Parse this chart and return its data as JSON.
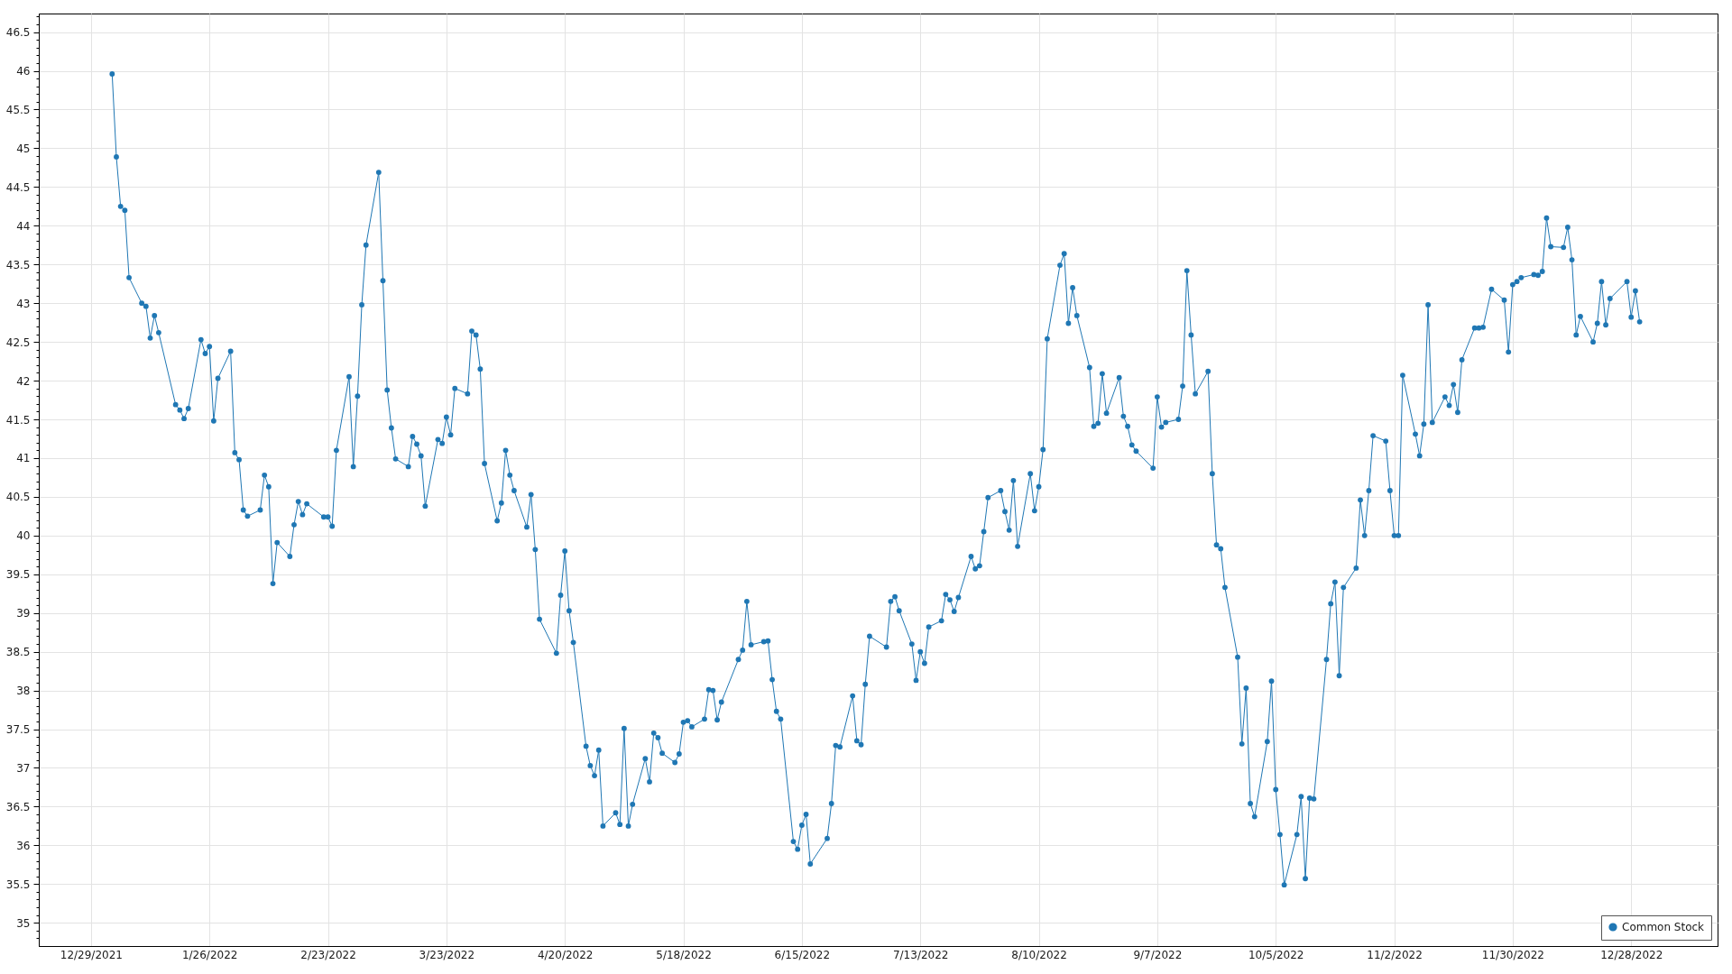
{
  "chart_data": {
    "type": "line",
    "x": [
      "2022-01-03",
      "2022-01-04",
      "2022-01-05",
      "2022-01-06",
      "2022-01-07",
      "2022-01-10",
      "2022-01-11",
      "2022-01-12",
      "2022-01-13",
      "2022-01-14",
      "2022-01-18",
      "2022-01-19",
      "2022-01-20",
      "2022-01-21",
      "2022-01-24",
      "2022-01-25",
      "2022-01-26",
      "2022-01-27",
      "2022-01-28",
      "2022-01-31",
      "2022-02-01",
      "2022-02-02",
      "2022-02-03",
      "2022-02-04",
      "2022-02-07",
      "2022-02-08",
      "2022-02-09",
      "2022-02-10",
      "2022-02-11",
      "2022-02-14",
      "2022-02-15",
      "2022-02-16",
      "2022-02-17",
      "2022-02-18",
      "2022-02-22",
      "2022-02-23",
      "2022-02-24",
      "2022-02-25",
      "2022-02-28",
      "2022-03-01",
      "2022-03-02",
      "2022-03-03",
      "2022-03-04",
      "2022-03-07",
      "2022-03-08",
      "2022-03-09",
      "2022-03-10",
      "2022-03-11",
      "2022-03-14",
      "2022-03-15",
      "2022-03-16",
      "2022-03-17",
      "2022-03-18",
      "2022-03-21",
      "2022-03-22",
      "2022-03-23",
      "2022-03-24",
      "2022-03-25",
      "2022-03-28",
      "2022-03-29",
      "2022-03-30",
      "2022-03-31",
      "2022-04-01",
      "2022-04-04",
      "2022-04-05",
      "2022-04-06",
      "2022-04-07",
      "2022-04-08",
      "2022-04-11",
      "2022-04-12",
      "2022-04-13",
      "2022-04-14",
      "2022-04-18",
      "2022-04-19",
      "2022-04-20",
      "2022-04-21",
      "2022-04-22",
      "2022-04-25",
      "2022-04-26",
      "2022-04-27",
      "2022-04-28",
      "2022-04-29",
      "2022-05-02",
      "2022-05-03",
      "2022-05-04",
      "2022-05-05",
      "2022-05-06",
      "2022-05-09",
      "2022-05-10",
      "2022-05-11",
      "2022-05-12",
      "2022-05-13",
      "2022-05-16",
      "2022-05-17",
      "2022-05-18",
      "2022-05-19",
      "2022-05-20",
      "2022-05-23",
      "2022-05-24",
      "2022-05-25",
      "2022-05-26",
      "2022-05-27",
      "2022-05-31",
      "2022-06-01",
      "2022-06-02",
      "2022-06-03",
      "2022-06-06",
      "2022-06-07",
      "2022-06-08",
      "2022-06-09",
      "2022-06-10",
      "2022-06-13",
      "2022-06-14",
      "2022-06-15",
      "2022-06-16",
      "2022-06-17",
      "2022-06-21",
      "2022-06-22",
      "2022-06-23",
      "2022-06-24",
      "2022-06-27",
      "2022-06-28",
      "2022-06-29",
      "2022-06-30",
      "2022-07-01",
      "2022-07-05",
      "2022-07-06",
      "2022-07-07",
      "2022-07-08",
      "2022-07-11",
      "2022-07-12",
      "2022-07-13",
      "2022-07-14",
      "2022-07-15",
      "2022-07-18",
      "2022-07-19",
      "2022-07-20",
      "2022-07-21",
      "2022-07-22",
      "2022-07-25",
      "2022-07-26",
      "2022-07-27",
      "2022-07-28",
      "2022-07-29",
      "2022-08-01",
      "2022-08-02",
      "2022-08-03",
      "2022-08-04",
      "2022-08-05",
      "2022-08-08",
      "2022-08-09",
      "2022-08-10",
      "2022-08-11",
      "2022-08-12",
      "2022-08-15",
      "2022-08-16",
      "2022-08-17",
      "2022-08-18",
      "2022-08-19",
      "2022-08-22",
      "2022-08-23",
      "2022-08-24",
      "2022-08-25",
      "2022-08-26",
      "2022-08-29",
      "2022-08-30",
      "2022-08-31",
      "2022-09-01",
      "2022-09-02",
      "2022-09-06",
      "2022-09-07",
      "2022-09-08",
      "2022-09-09",
      "2022-09-12",
      "2022-09-13",
      "2022-09-14",
      "2022-09-15",
      "2022-09-16",
      "2022-09-19",
      "2022-09-20",
      "2022-09-21",
      "2022-09-22",
      "2022-09-23",
      "2022-09-26",
      "2022-09-27",
      "2022-09-28",
      "2022-09-29",
      "2022-09-30",
      "2022-10-03",
      "2022-10-04",
      "2022-10-05",
      "2022-10-06",
      "2022-10-07",
      "2022-10-10",
      "2022-10-11",
      "2022-10-12",
      "2022-10-13",
      "2022-10-14",
      "2022-10-17",
      "2022-10-18",
      "2022-10-19",
      "2022-10-20",
      "2022-10-21",
      "2022-10-24",
      "2022-10-25",
      "2022-10-26",
      "2022-10-27",
      "2022-10-28",
      "2022-10-31",
      "2022-11-01",
      "2022-11-02",
      "2022-11-03",
      "2022-11-04",
      "2022-11-07",
      "2022-11-08",
      "2022-11-09",
      "2022-11-10",
      "2022-11-11",
      "2022-11-14",
      "2022-11-15",
      "2022-11-16",
      "2022-11-17",
      "2022-11-18",
      "2022-11-21",
      "2022-11-22",
      "2022-11-23",
      "2022-11-25",
      "2022-11-28",
      "2022-11-29",
      "2022-11-30",
      "2022-12-01",
      "2022-12-02",
      "2022-12-05",
      "2022-12-06",
      "2022-12-07",
      "2022-12-08",
      "2022-12-09",
      "2022-12-12",
      "2022-12-13",
      "2022-12-14",
      "2022-12-15",
      "2022-12-16",
      "2022-12-19",
      "2022-12-20",
      "2022-12-21",
      "2022-12-22",
      "2022-12-23",
      "2022-12-27",
      "2022-12-28",
      "2022-12-29",
      "2022-12-30"
    ],
    "series": [
      {
        "name": "Common Stock",
        "color": "#1f77b4",
        "values": [
          45.96,
          44.89,
          44.25,
          44.2,
          43.33,
          43.0,
          42.96,
          42.55,
          42.84,
          42.62,
          41.69,
          41.62,
          41.51,
          41.64,
          42.53,
          42.35,
          42.44,
          41.48,
          42.03,
          42.38,
          41.07,
          40.98,
          40.33,
          40.25,
          40.33,
          40.78,
          40.63,
          39.38,
          39.91,
          39.73,
          40.14,
          40.44,
          40.27,
          40.41,
          40.24,
          40.24,
          40.12,
          41.1,
          42.05,
          40.89,
          41.8,
          42.98,
          43.75,
          44.69,
          43.29,
          41.88,
          41.39,
          40.99,
          40.89,
          41.28,
          41.18,
          41.03,
          40.38,
          41.24,
          41.19,
          41.53,
          41.3,
          41.9,
          41.83,
          42.64,
          42.59,
          42.15,
          40.93,
          40.19,
          40.42,
          41.1,
          40.78,
          40.58,
          40.11,
          40.53,
          39.82,
          38.92,
          38.48,
          39.23,
          39.8,
          39.03,
          38.62,
          37.28,
          37.03,
          36.9,
          37.23,
          36.25,
          36.42,
          36.27,
          37.51,
          36.25,
          36.53,
          37.12,
          36.82,
          37.45,
          37.39,
          37.19,
          37.07,
          37.18,
          37.59,
          37.61,
          37.53,
          37.63,
          38.01,
          38.0,
          37.62,
          37.85,
          38.4,
          38.52,
          39.15,
          38.59,
          38.63,
          38.64,
          38.14,
          37.73,
          37.63,
          36.05,
          35.95,
          36.26,
          36.4,
          35.76,
          36.09,
          36.54,
          37.29,
          37.27,
          37.93,
          37.35,
          37.3,
          38.08,
          38.7,
          38.56,
          39.15,
          39.21,
          39.03,
          38.6,
          38.13,
          38.5,
          38.35,
          38.82,
          38.9,
          39.24,
          39.17,
          39.02,
          39.2,
          39.73,
          39.57,
          39.61,
          40.05,
          40.49,
          40.58,
          40.31,
          40.07,
          40.71,
          39.86,
          40.8,
          40.32,
          40.63,
          41.11,
          42.54,
          43.49,
          43.64,
          42.74,
          43.2,
          42.84,
          42.17,
          41.41,
          41.45,
          42.09,
          41.58,
          42.04,
          41.54,
          41.41,
          41.17,
          41.09,
          40.87,
          41.79,
          41.4,
          41.46,
          41.5,
          41.93,
          43.42,
          42.59,
          41.83,
          42.12,
          40.8,
          39.88,
          39.83,
          39.33,
          38.43,
          37.31,
          38.03,
          36.54,
          36.37,
          37.34,
          38.12,
          36.72,
          36.14,
          35.49,
          36.14,
          36.63,
          35.57,
          36.61,
          36.6,
          38.4,
          39.12,
          39.4,
          38.19,
          39.33,
          39.58,
          40.46,
          40.0,
          40.58,
          41.29,
          41.22,
          40.58,
          40.0,
          40.0,
          42.07,
          41.31,
          41.03,
          41.44,
          42.98,
          41.46,
          41.79,
          41.68,
          41.95,
          41.59,
          42.27,
          42.68,
          42.68,
          42.69,
          43.18,
          43.04,
          42.37,
          43.24,
          43.28,
          43.33,
          43.37,
          43.36,
          43.41,
          44.1,
          43.73,
          43.72,
          43.98,
          43.56,
          42.59,
          42.83,
          42.5,
          42.74,
          43.28,
          42.72,
          43.06,
          43.28,
          42.82,
          43.16,
          42.76
        ]
      }
    ],
    "xlim": [
      "2021-12-16T16:00",
      "2023-01-17T10:00"
    ],
    "xticks": [
      {
        "value": "2021-12-29",
        "label": "12/29/2021"
      },
      {
        "value": "2022-01-26",
        "label": "1/26/2022"
      },
      {
        "value": "2022-02-23",
        "label": "2/23/2022"
      },
      {
        "value": "2022-03-23",
        "label": "3/23/2022"
      },
      {
        "value": "2022-04-20",
        "label": "4/20/2022"
      },
      {
        "value": "2022-05-18",
        "label": "5/18/2022"
      },
      {
        "value": "2022-06-15",
        "label": "6/15/2022"
      },
      {
        "value": "2022-07-13",
        "label": "7/13/2022"
      },
      {
        "value": "2022-08-10",
        "label": "8/10/2022"
      },
      {
        "value": "2022-09-07",
        "label": "9/7/2022"
      },
      {
        "value": "2022-10-05",
        "label": "10/5/2022"
      },
      {
        "value": "2022-11-02",
        "label": "11/2/2022"
      },
      {
        "value": "2022-11-30",
        "label": "11/30/2022"
      },
      {
        "value": "2022-12-28",
        "label": "12/28/2022"
      }
    ],
    "ylim": [
      34.7,
      46.74
    ],
    "yticks": [
      {
        "value": 34.8,
        "label": null
      },
      {
        "value": 34.9,
        "label": null
      },
      {
        "value": 35,
        "label": "35"
      },
      {
        "value": 35.1,
        "label": null
      },
      {
        "value": 35.2,
        "label": null
      },
      {
        "value": 35.3,
        "label": null
      },
      {
        "value": 35.4,
        "label": null
      },
      {
        "value": 35.5,
        "label": "35.5"
      },
      {
        "value": 35.6,
        "label": null
      },
      {
        "value": 35.7,
        "label": null
      },
      {
        "value": 35.8,
        "label": null
      },
      {
        "value": 35.9,
        "label": null
      },
      {
        "value": 36,
        "label": "36"
      },
      {
        "value": 36.1,
        "label": null
      },
      {
        "value": 36.2,
        "label": null
      },
      {
        "value": 36.3,
        "label": null
      },
      {
        "value": 36.4,
        "label": null
      },
      {
        "value": 36.5,
        "label": "36.5"
      },
      {
        "value": 36.6,
        "label": null
      },
      {
        "value": 36.7,
        "label": null
      },
      {
        "value": 36.8,
        "label": null
      },
      {
        "value": 36.9,
        "label": null
      },
      {
        "value": 37,
        "label": "37"
      },
      {
        "value": 37.1,
        "label": null
      },
      {
        "value": 37.2,
        "label": null
      },
      {
        "value": 37.3,
        "label": null
      },
      {
        "value": 37.4,
        "label": null
      },
      {
        "value": 37.5,
        "label": "37.5"
      },
      {
        "value": 37.6,
        "label": null
      },
      {
        "value": 37.7,
        "label": null
      },
      {
        "value": 37.8,
        "label": null
      },
      {
        "value": 37.9,
        "label": null
      },
      {
        "value": 38,
        "label": "38"
      },
      {
        "value": 38.1,
        "label": null
      },
      {
        "value": 38.2,
        "label": null
      },
      {
        "value": 38.3,
        "label": null
      },
      {
        "value": 38.4,
        "label": null
      },
      {
        "value": 38.5,
        "label": "38.5"
      },
      {
        "value": 38.6,
        "label": null
      },
      {
        "value": 38.7,
        "label": null
      },
      {
        "value": 38.8,
        "label": null
      },
      {
        "value": 38.9,
        "label": null
      },
      {
        "value": 39,
        "label": "39"
      },
      {
        "value": 39.1,
        "label": null
      },
      {
        "value": 39.2,
        "label": null
      },
      {
        "value": 39.3,
        "label": null
      },
      {
        "value": 39.4,
        "label": null
      },
      {
        "value": 39.5,
        "label": "39.5"
      },
      {
        "value": 39.6,
        "label": null
      },
      {
        "value": 39.7,
        "label": null
      },
      {
        "value": 39.8,
        "label": null
      },
      {
        "value": 39.9,
        "label": null
      },
      {
        "value": 40,
        "label": "40"
      },
      {
        "value": 40.1,
        "label": null
      },
      {
        "value": 40.2,
        "label": null
      },
      {
        "value": 40.3,
        "label": null
      },
      {
        "value": 40.4,
        "label": null
      },
      {
        "value": 40.5,
        "label": "40.5"
      },
      {
        "value": 40.6,
        "label": null
      },
      {
        "value": 40.7,
        "label": null
      },
      {
        "value": 40.8,
        "label": null
      },
      {
        "value": 40.9,
        "label": null
      },
      {
        "value": 41,
        "label": "41"
      },
      {
        "value": 41.1,
        "label": null
      },
      {
        "value": 41.2,
        "label": null
      },
      {
        "value": 41.3,
        "label": null
      },
      {
        "value": 41.4,
        "label": null
      },
      {
        "value": 41.5,
        "label": "41.5"
      },
      {
        "value": 41.6,
        "label": null
      },
      {
        "value": 41.7,
        "label": null
      },
      {
        "value": 41.8,
        "label": null
      },
      {
        "value": 41.9,
        "label": null
      },
      {
        "value": 42,
        "label": "42"
      },
      {
        "value": 42.1,
        "label": null
      },
      {
        "value": 42.2,
        "label": null
      },
      {
        "value": 42.3,
        "label": null
      },
      {
        "value": 42.4,
        "label": null
      },
      {
        "value": 42.5,
        "label": "42.5"
      },
      {
        "value": 42.6,
        "label": null
      },
      {
        "value": 42.7,
        "label": null
      },
      {
        "value": 42.8,
        "label": null
      },
      {
        "value": 42.9,
        "label": null
      },
      {
        "value": 43,
        "label": "43"
      },
      {
        "value": 43.1,
        "label": null
      },
      {
        "value": 43.2,
        "label": null
      },
      {
        "value": 43.3,
        "label": null
      },
      {
        "value": 43.4,
        "label": null
      },
      {
        "value": 43.5,
        "label": "43.5"
      },
      {
        "value": 43.6,
        "label": null
      },
      {
        "value": 43.7,
        "label": null
      },
      {
        "value": 43.8,
        "label": null
      },
      {
        "value": 43.9,
        "label": null
      },
      {
        "value": 44,
        "label": "44"
      },
      {
        "value": 44.1,
        "label": null
      },
      {
        "value": 44.2,
        "label": null
      },
      {
        "value": 44.3,
        "label": null
      },
      {
        "value": 44.4,
        "label": null
      },
      {
        "value": 44.5,
        "label": "44.5"
      },
      {
        "value": 44.6,
        "label": null
      },
      {
        "value": 44.7,
        "label": null
      },
      {
        "value": 44.8,
        "label": null
      },
      {
        "value": 44.9,
        "label": null
      },
      {
        "value": 45,
        "label": "45"
      },
      {
        "value": 45.1,
        "label": null
      },
      {
        "value": 45.2,
        "label": null
      },
      {
        "value": 45.3,
        "label": null
      },
      {
        "value": 45.4,
        "label": null
      },
      {
        "value": 45.5,
        "label": "45.5"
      },
      {
        "value": 45.6,
        "label": null
      },
      {
        "value": 45.7,
        "label": null
      },
      {
        "value": 45.8,
        "label": null
      },
      {
        "value": 45.9,
        "label": null
      },
      {
        "value": 46,
        "label": "46"
      },
      {
        "value": 46.1,
        "label": null
      },
      {
        "value": 46.2,
        "label": null
      },
      {
        "value": 46.3,
        "label": null
      },
      {
        "value": 46.4,
        "label": null
      },
      {
        "value": 46.5,
        "label": "46.5"
      },
      {
        "value": 46.6,
        "label": null
      },
      {
        "value": 46.7,
        "label": null
      }
    ],
    "grid": true,
    "legend": "bottom right",
    "marker": "circle",
    "line_style": "solid"
  }
}
